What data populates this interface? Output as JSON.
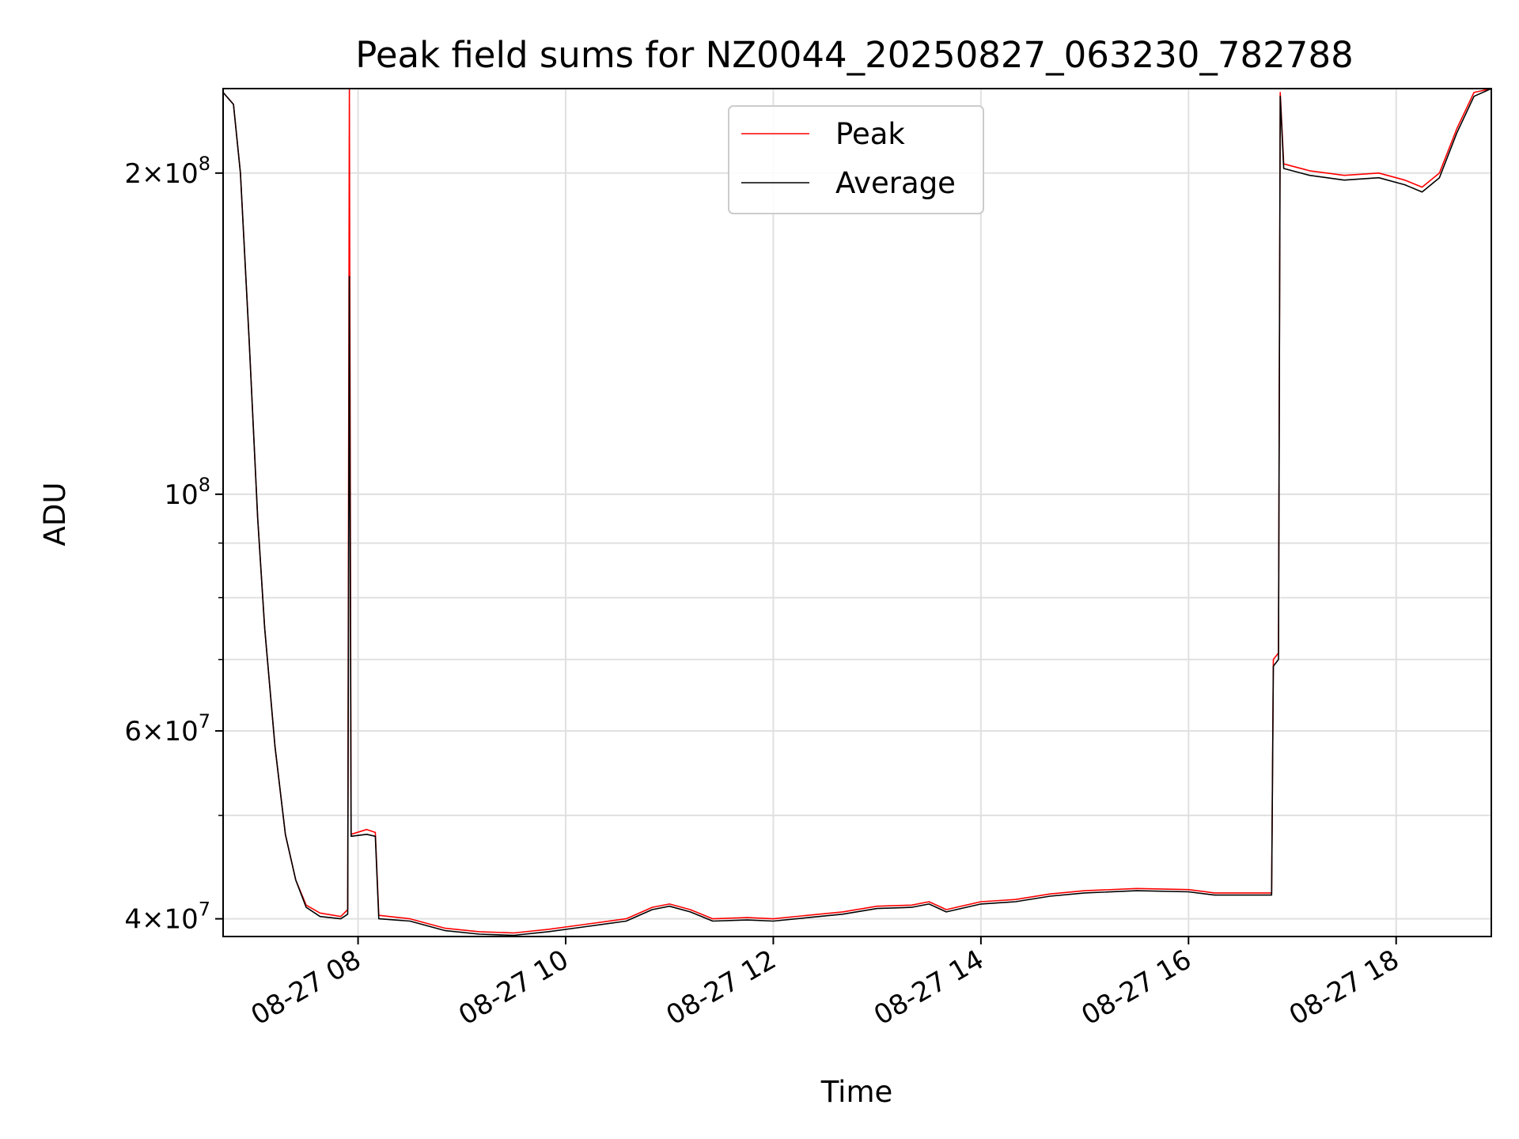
{
  "chart_data": {
    "type": "line",
    "title": "Peak field sums for NZ0044_20250827_063230_782788",
    "xlabel": "Time",
    "ylabel": "ADU",
    "y_scale": "log",
    "grid": true,
    "legend_position": "top-center",
    "x_range": [
      "2025-08-27 06:42",
      "2025-08-27 18:55"
    ],
    "ylim": [
      38500000,
      240000000
    ],
    "x_ticks": [
      {
        "time": "2025-08-27 08:00",
        "label": "08-27 08"
      },
      {
        "time": "2025-08-27 10:00",
        "label": "08-27 10"
      },
      {
        "time": "2025-08-27 12:00",
        "label": "08-27 12"
      },
      {
        "time": "2025-08-27 14:00",
        "label": "08-27 14"
      },
      {
        "time": "2025-08-27 16:00",
        "label": "08-27 16"
      },
      {
        "time": "2025-08-27 18:00",
        "label": "08-27 18"
      }
    ],
    "y_ticks": [
      {
        "value": 40000000,
        "base": "4",
        "mult": "×",
        "exp_base": "10",
        "exp": "7"
      },
      {
        "value": 60000000,
        "base": "6",
        "mult": "×",
        "exp_base": "10",
        "exp": "7"
      },
      {
        "value": 100000000,
        "base": "",
        "mult": "",
        "exp_base": "10",
        "exp": "8"
      },
      {
        "value": 200000000,
        "base": "2",
        "mult": "×",
        "exp_base": "10",
        "exp": "8"
      }
    ],
    "y_minor_ticks": [
      50000000,
      70000000,
      80000000,
      90000000
    ],
    "series": [
      {
        "name": "Peak",
        "color": "#ff0000",
        "points": [
          [
            "2025-08-27 06:42",
            238000000
          ],
          [
            "2025-08-27 06:48",
            232000000
          ],
          [
            "2025-08-27 06:52",
            200000000
          ],
          [
            "2025-08-27 06:57",
            140000000
          ],
          [
            "2025-08-27 07:02",
            95000000
          ],
          [
            "2025-08-27 07:06",
            75000000
          ],
          [
            "2025-08-27 07:12",
            58000000
          ],
          [
            "2025-08-27 07:18",
            48000000
          ],
          [
            "2025-08-27 07:24",
            43500000
          ],
          [
            "2025-08-27 07:30",
            41200000
          ],
          [
            "2025-08-27 07:38",
            40500000
          ],
          [
            "2025-08-27 07:50",
            40200000
          ],
          [
            "2025-08-27 07:54",
            40800000
          ],
          [
            "2025-08-27 07:55",
            240000000
          ],
          [
            "2025-08-27 07:56",
            48000000
          ],
          [
            "2025-08-27 08:05",
            48500000
          ],
          [
            "2025-08-27 08:10",
            48200000
          ],
          [
            "2025-08-27 08:12",
            40300000
          ],
          [
            "2025-08-27 08:30",
            40000000
          ],
          [
            "2025-08-27 08:50",
            39200000
          ],
          [
            "2025-08-27 09:10",
            38900000
          ],
          [
            "2025-08-27 09:30",
            38800000
          ],
          [
            "2025-08-27 09:50",
            39100000
          ],
          [
            "2025-08-27 10:10",
            39500000
          ],
          [
            "2025-08-27 10:35",
            40000000
          ],
          [
            "2025-08-27 10:50",
            41000000
          ],
          [
            "2025-08-27 11:00",
            41300000
          ],
          [
            "2025-08-27 11:12",
            40800000
          ],
          [
            "2025-08-27 11:25",
            40000000
          ],
          [
            "2025-08-27 11:45",
            40100000
          ],
          [
            "2025-08-27 12:00",
            40000000
          ],
          [
            "2025-08-27 12:20",
            40300000
          ],
          [
            "2025-08-27 12:40",
            40600000
          ],
          [
            "2025-08-27 13:00",
            41100000
          ],
          [
            "2025-08-27 13:20",
            41200000
          ],
          [
            "2025-08-27 13:30",
            41500000
          ],
          [
            "2025-08-27 13:40",
            40800000
          ],
          [
            "2025-08-27 14:00",
            41500000
          ],
          [
            "2025-08-27 14:20",
            41700000
          ],
          [
            "2025-08-27 14:40",
            42200000
          ],
          [
            "2025-08-27 15:00",
            42500000
          ],
          [
            "2025-08-27 15:30",
            42700000
          ],
          [
            "2025-08-27 16:00",
            42600000
          ],
          [
            "2025-08-27 16:15",
            42300000
          ],
          [
            "2025-08-27 16:48",
            42300000
          ],
          [
            "2025-08-27 16:49",
            70000000
          ],
          [
            "2025-08-27 16:52",
            71000000
          ],
          [
            "2025-08-27 16:53",
            238000000
          ],
          [
            "2025-08-27 16:55",
            204000000
          ],
          [
            "2025-08-27 17:10",
            201000000
          ],
          [
            "2025-08-27 17:30",
            199000000
          ],
          [
            "2025-08-27 17:50",
            200000000
          ],
          [
            "2025-08-27 18:05",
            197000000
          ],
          [
            "2025-08-27 18:15",
            194000000
          ],
          [
            "2025-08-27 18:25",
            200000000
          ],
          [
            "2025-08-27 18:35",
            220000000
          ],
          [
            "2025-08-27 18:45",
            238000000
          ],
          [
            "2025-08-27 18:55",
            240000000
          ]
        ]
      },
      {
        "name": "Average",
        "color": "#000000",
        "points": [
          [
            "2025-08-27 06:42",
            238000000
          ],
          [
            "2025-08-27 06:48",
            232000000
          ],
          [
            "2025-08-27 06:52",
            200000000
          ],
          [
            "2025-08-27 06:57",
            140000000
          ],
          [
            "2025-08-27 07:02",
            95000000
          ],
          [
            "2025-08-27 07:06",
            75000000
          ],
          [
            "2025-08-27 07:12",
            58000000
          ],
          [
            "2025-08-27 07:18",
            48000000
          ],
          [
            "2025-08-27 07:24",
            43500000
          ],
          [
            "2025-08-27 07:30",
            41000000
          ],
          [
            "2025-08-27 07:38",
            40200000
          ],
          [
            "2025-08-27 07:50",
            40000000
          ],
          [
            "2025-08-27 07:54",
            40400000
          ],
          [
            "2025-08-27 07:55",
            160000000
          ],
          [
            "2025-08-27 07:56",
            47800000
          ],
          [
            "2025-08-27 08:05",
            48000000
          ],
          [
            "2025-08-27 08:10",
            47800000
          ],
          [
            "2025-08-27 08:12",
            40000000
          ],
          [
            "2025-08-27 08:30",
            39800000
          ],
          [
            "2025-08-27 08:50",
            39000000
          ],
          [
            "2025-08-27 09:10",
            38700000
          ],
          [
            "2025-08-27 09:30",
            38600000
          ],
          [
            "2025-08-27 09:50",
            38900000
          ],
          [
            "2025-08-27 10:10",
            39300000
          ],
          [
            "2025-08-27 10:35",
            39800000
          ],
          [
            "2025-08-27 10:50",
            40800000
          ],
          [
            "2025-08-27 11:00",
            41100000
          ],
          [
            "2025-08-27 11:12",
            40600000
          ],
          [
            "2025-08-27 11:25",
            39800000
          ],
          [
            "2025-08-27 11:45",
            39900000
          ],
          [
            "2025-08-27 12:00",
            39800000
          ],
          [
            "2025-08-27 12:20",
            40100000
          ],
          [
            "2025-08-27 12:40",
            40400000
          ],
          [
            "2025-08-27 13:00",
            40900000
          ],
          [
            "2025-08-27 13:20",
            41000000
          ],
          [
            "2025-08-27 13:30",
            41300000
          ],
          [
            "2025-08-27 13:40",
            40600000
          ],
          [
            "2025-08-27 14:00",
            41300000
          ],
          [
            "2025-08-27 14:20",
            41500000
          ],
          [
            "2025-08-27 14:40",
            42000000
          ],
          [
            "2025-08-27 15:00",
            42300000
          ],
          [
            "2025-08-27 15:30",
            42500000
          ],
          [
            "2025-08-27 16:00",
            42400000
          ],
          [
            "2025-08-27 16:15",
            42100000
          ],
          [
            "2025-08-27 16:48",
            42100000
          ],
          [
            "2025-08-27 16:49",
            69000000
          ],
          [
            "2025-08-27 16:52",
            70000000
          ],
          [
            "2025-08-27 16:53",
            236000000
          ],
          [
            "2025-08-27 16:55",
            202000000
          ],
          [
            "2025-08-27 17:10",
            199000000
          ],
          [
            "2025-08-27 17:30",
            197000000
          ],
          [
            "2025-08-27 17:50",
            198000000
          ],
          [
            "2025-08-27 18:05",
            195000000
          ],
          [
            "2025-08-27 18:15",
            192000000
          ],
          [
            "2025-08-27 18:25",
            198000000
          ],
          [
            "2025-08-27 18:35",
            218000000
          ],
          [
            "2025-08-27 18:45",
            236000000
          ],
          [
            "2025-08-27 18:55",
            240000000
          ]
        ]
      }
    ]
  }
}
